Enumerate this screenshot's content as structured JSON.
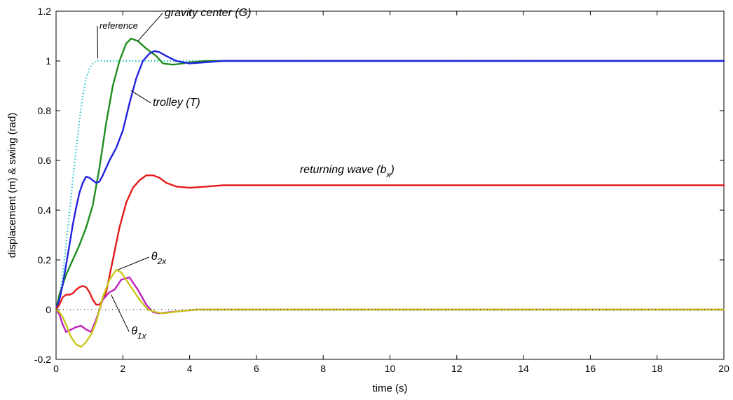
{
  "chart_data": {
    "type": "line",
    "xlabel": "time (s)",
    "ylabel": "displacement (m) & swing (rad)",
    "xlim": [
      0,
      20
    ],
    "ylim": [
      -0.2,
      1.2
    ],
    "xticks": [
      "0",
      "2",
      "4",
      "6",
      "8",
      "10",
      "12",
      "14",
      "16",
      "18",
      "20"
    ],
    "yticks": [
      "-0.2",
      "0",
      "0.2",
      "0.4",
      "0.6",
      "0.8",
      "1",
      "1.2"
    ],
    "grid": false,
    "series": [
      {
        "label": "reference",
        "color": "#22c4c4",
        "style": "dotted",
        "x": [
          0,
          0.1,
          0.2,
          0.3,
          0.4,
          0.5,
          0.6,
          0.7,
          0.8,
          0.9,
          1.0,
          1.1,
          1.2,
          1.3,
          1.4,
          2,
          4,
          8,
          12,
          16,
          20
        ],
        "y": [
          0,
          0.05,
          0.14,
          0.26,
          0.39,
          0.52,
          0.64,
          0.76,
          0.86,
          0.93,
          0.97,
          0.99,
          1.0,
          1.0,
          1.0,
          1.0,
          1.0,
          1.0,
          1.0,
          1.0,
          1.0
        ]
      },
      {
        "label": "gravity center (G)",
        "color": "#1e8c1e",
        "style": "solid",
        "x": [
          0,
          0.1,
          0.2,
          0.3,
          0.5,
          0.7,
          0.9,
          1.1,
          1.3,
          1.5,
          1.7,
          1.9,
          2.1,
          2.25,
          2.45,
          2.7,
          3.0,
          3.2,
          3.5,
          3.8,
          4.0,
          4.5,
          6,
          10,
          14,
          20
        ],
        "y": [
          0,
          0.06,
          0.1,
          0.14,
          0.2,
          0.26,
          0.33,
          0.42,
          0.57,
          0.75,
          0.9,
          1.0,
          1.07,
          1.09,
          1.08,
          1.05,
          1.02,
          0.99,
          0.985,
          0.99,
          0.995,
          1.0,
          1.0,
          1.0,
          1.0,
          1.0
        ]
      },
      {
        "label": "trolley (T)",
        "color": "#2222e0",
        "style": "solid",
        "x": [
          0,
          0.1,
          0.2,
          0.3,
          0.4,
          0.5,
          0.6,
          0.7,
          0.8,
          0.9,
          1.0,
          1.1,
          1.2,
          1.3,
          1.4,
          1.6,
          1.8,
          2.0,
          2.2,
          2.4,
          2.6,
          2.8,
          2.95,
          3.1,
          3.3,
          3.6,
          4.0,
          4.5,
          5.0,
          6,
          10,
          14,
          20
        ],
        "y": [
          0,
          0.04,
          0.1,
          0.18,
          0.26,
          0.34,
          0.41,
          0.47,
          0.51,
          0.535,
          0.53,
          0.52,
          0.51,
          0.515,
          0.54,
          0.6,
          0.65,
          0.72,
          0.83,
          0.93,
          1.0,
          1.03,
          1.04,
          1.035,
          1.02,
          1.0,
          0.99,
          0.995,
          1.0,
          1.0,
          1.0,
          1.0,
          1.0
        ]
      },
      {
        "label": "returning wave (bx)",
        "color": "#e41a1a",
        "style": "solid",
        "x": [
          0,
          0.1,
          0.2,
          0.3,
          0.4,
          0.5,
          0.6,
          0.7,
          0.8,
          0.9,
          1.0,
          1.1,
          1.2,
          1.3,
          1.4,
          1.5,
          1.7,
          1.9,
          2.1,
          2.3,
          2.5,
          2.7,
          2.9,
          3.1,
          3.3,
          3.6,
          4.0,
          4.5,
          5.0,
          6,
          10,
          14,
          20
        ],
        "y": [
          0,
          0.02,
          0.05,
          0.06,
          0.06,
          0.065,
          0.08,
          0.09,
          0.095,
          0.09,
          0.07,
          0.04,
          0.02,
          0.02,
          0.04,
          0.07,
          0.2,
          0.33,
          0.43,
          0.49,
          0.52,
          0.54,
          0.54,
          0.53,
          0.51,
          0.495,
          0.49,
          0.495,
          0.5,
          0.5,
          0.5,
          0.5,
          0.5
        ]
      },
      {
        "label": "θ1x",
        "color": "#c020c0",
        "style": "solid",
        "x": [
          0,
          0.1,
          0.2,
          0.3,
          0.45,
          0.6,
          0.75,
          0.9,
          1.05,
          1.2,
          1.4,
          1.6,
          1.75,
          1.95,
          2.2,
          2.45,
          2.7,
          2.9,
          3.1,
          3.4,
          3.8,
          4.2,
          5,
          8,
          12,
          16,
          20
        ],
        "y": [
          0,
          -0.02,
          -0.06,
          -0.09,
          -0.08,
          -0.07,
          -0.065,
          -0.08,
          -0.09,
          -0.04,
          0.04,
          0.07,
          0.08,
          0.12,
          0.13,
          0.08,
          0.02,
          -0.01,
          -0.015,
          -0.01,
          -0.005,
          0,
          0,
          0,
          0,
          0,
          0
        ]
      },
      {
        "label": "θ2x",
        "color": "#c8c81c",
        "style": "solid",
        "x": [
          0,
          0.1,
          0.2,
          0.3,
          0.45,
          0.6,
          0.75,
          0.9,
          1.05,
          1.2,
          1.4,
          1.6,
          1.8,
          1.95,
          2.2,
          2.5,
          2.75,
          3.0,
          3.2,
          3.5,
          3.8,
          4.2,
          5,
          8,
          12,
          16,
          20
        ],
        "y": [
          0,
          -0.01,
          -0.03,
          -0.06,
          -0.11,
          -0.14,
          -0.15,
          -0.13,
          -0.1,
          -0.05,
          0.05,
          0.12,
          0.16,
          0.15,
          0.1,
          0.04,
          0.0,
          -0.01,
          -0.015,
          -0.01,
          -0.005,
          0,
          0,
          0,
          0,
          0,
          0
        ]
      },
      {
        "label": "zero",
        "color": "#000000",
        "style": "dotted",
        "x": [
          0,
          20
        ],
        "y": [
          0,
          0
        ]
      }
    ],
    "annotations": [
      {
        "id": "reference",
        "text": "reference",
        "x": 1.3,
        "y": 1.13,
        "px": 1.25,
        "py": 1.01
      },
      {
        "id": "gravity",
        "text": "gravity center (G)",
        "x": 3.25,
        "y": 1.18,
        "px": 2.45,
        "py": 1.08
      },
      {
        "id": "trolley",
        "text": "trolley (T)",
        "x": 2.9,
        "y": 0.82,
        "px": 2.25,
        "py": 0.88
      },
      {
        "id": "returning",
        "text": "returning wave (b",
        "sub": "x",
        "suffix": ")",
        "x": 7.3,
        "y": 0.55
      },
      {
        "id": "theta2",
        "text": "θ",
        "sub": "2x",
        "x": 2.85,
        "y": 0.2,
        "px": 1.85,
        "py": 0.16
      },
      {
        "id": "theta1",
        "text": "θ",
        "sub": "1x",
        "x": 2.25,
        "y": -0.1,
        "px": 1.65,
        "py": 0.06
      }
    ]
  }
}
